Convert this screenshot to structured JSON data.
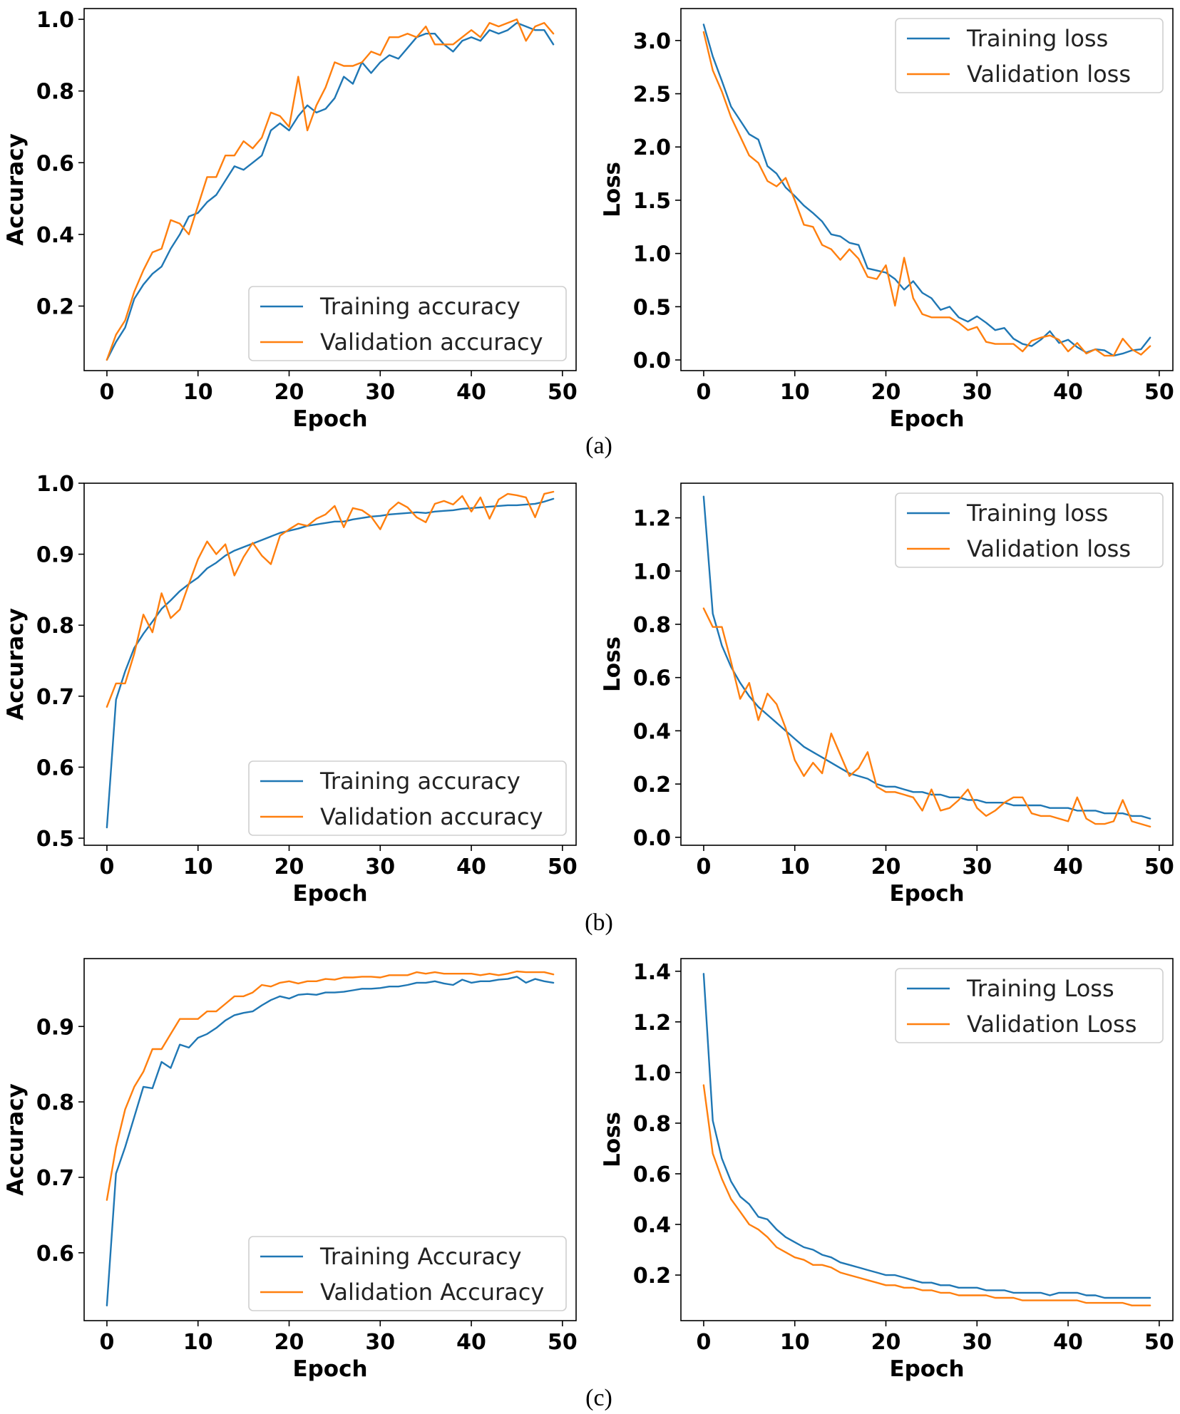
{
  "captions": [
    "(a)",
    "(b)",
    "(c)"
  ],
  "colors": {
    "training": "#1f77b4",
    "validation": "#ff7f0e"
  },
  "chart_data": [
    {
      "id": "a-accuracy",
      "type": "line",
      "panel": "(a)",
      "title": "",
      "xlabel": "Epoch",
      "ylabel": "Accuracy",
      "xlim": [
        -2.5,
        51.5
      ],
      "ylim": [
        0.02,
        1.03
      ],
      "xticks": [
        0,
        10,
        20,
        30,
        40,
        50
      ],
      "yticks": [
        0.2,
        0.4,
        0.6,
        0.8,
        1.0
      ],
      "ytick_labels": [
        "0.2",
        "0.4",
        "0.6",
        "0.8",
        "1.0"
      ],
      "grid": false,
      "legend": "lower-right",
      "series": [
        {
          "name": "Training accuracy",
          "color": "#1f77b4",
          "values": [
            0.05,
            0.1,
            0.14,
            0.22,
            0.26,
            0.29,
            0.31,
            0.36,
            0.4,
            0.45,
            0.46,
            0.49,
            0.51,
            0.55,
            0.59,
            0.58,
            0.6,
            0.62,
            0.69,
            0.71,
            0.69,
            0.73,
            0.76,
            0.74,
            0.75,
            0.78,
            0.84,
            0.82,
            0.88,
            0.85,
            0.88,
            0.9,
            0.89,
            0.92,
            0.95,
            0.96,
            0.96,
            0.93,
            0.91,
            0.94,
            0.95,
            0.94,
            0.97,
            0.96,
            0.97,
            0.99,
            0.98,
            0.97,
            0.97,
            0.93
          ]
        },
        {
          "name": "Validation accuracy",
          "color": "#ff7f0e",
          "values": [
            0.05,
            0.12,
            0.16,
            0.24,
            0.3,
            0.35,
            0.36,
            0.44,
            0.43,
            0.4,
            0.48,
            0.56,
            0.56,
            0.62,
            0.62,
            0.66,
            0.64,
            0.67,
            0.74,
            0.73,
            0.7,
            0.84,
            0.69,
            0.76,
            0.81,
            0.88,
            0.87,
            0.87,
            0.88,
            0.91,
            0.9,
            0.95,
            0.95,
            0.96,
            0.95,
            0.98,
            0.93,
            0.93,
            0.93,
            0.95,
            0.97,
            0.95,
            0.99,
            0.98,
            0.99,
            1.0,
            0.94,
            0.98,
            0.99,
            0.96
          ]
        }
      ]
    },
    {
      "id": "a-loss",
      "type": "line",
      "panel": "(a)",
      "title": "",
      "xlabel": "Epoch",
      "ylabel": "Loss",
      "xlim": [
        -2.5,
        51.5
      ],
      "ylim": [
        -0.1,
        3.3
      ],
      "xticks": [
        0,
        10,
        20,
        30,
        40,
        50
      ],
      "yticks": [
        0.0,
        0.5,
        1.0,
        1.5,
        2.0,
        2.5,
        3.0
      ],
      "ytick_labels": [
        "0.0",
        "0.5",
        "1.0",
        "1.5",
        "2.0",
        "2.5",
        "3.0"
      ],
      "grid": false,
      "legend": "upper-right",
      "series": [
        {
          "name": "Training loss",
          "color": "#1f77b4",
          "values": [
            3.15,
            2.85,
            2.62,
            2.38,
            2.25,
            2.12,
            2.07,
            1.82,
            1.75,
            1.62,
            1.54,
            1.45,
            1.38,
            1.3,
            1.18,
            1.16,
            1.1,
            1.08,
            0.86,
            0.84,
            0.82,
            0.76,
            0.66,
            0.74,
            0.63,
            0.58,
            0.47,
            0.5,
            0.4,
            0.36,
            0.41,
            0.35,
            0.28,
            0.3,
            0.2,
            0.15,
            0.13,
            0.19,
            0.27,
            0.16,
            0.19,
            0.12,
            0.07,
            0.1,
            0.09,
            0.04,
            0.06,
            0.09,
            0.1,
            0.21
          ]
        },
        {
          "name": "Validation loss",
          "color": "#ff7f0e",
          "values": [
            3.08,
            2.72,
            2.52,
            2.28,
            2.1,
            1.92,
            1.85,
            1.68,
            1.63,
            1.71,
            1.5,
            1.27,
            1.25,
            1.08,
            1.04,
            0.94,
            1.04,
            0.95,
            0.78,
            0.76,
            0.89,
            0.51,
            0.96,
            0.58,
            0.43,
            0.4,
            0.4,
            0.4,
            0.35,
            0.28,
            0.31,
            0.17,
            0.15,
            0.15,
            0.15,
            0.08,
            0.18,
            0.21,
            0.23,
            0.19,
            0.08,
            0.16,
            0.06,
            0.1,
            0.04,
            0.04,
            0.2,
            0.1,
            0.05,
            0.13
          ]
        }
      ]
    },
    {
      "id": "b-accuracy",
      "type": "line",
      "panel": "(b)",
      "title": "",
      "xlabel": "Epoch",
      "ylabel": "Accuracy",
      "xlim": [
        -2.5,
        51.5
      ],
      "ylim": [
        0.49,
        1.0
      ],
      "xticks": [
        0,
        10,
        20,
        30,
        40,
        50
      ],
      "yticks": [
        0.5,
        0.6,
        0.7,
        0.8,
        0.9,
        1.0
      ],
      "ytick_labels": [
        "0.5",
        "0.6",
        "0.7",
        "0.8",
        "0.9",
        "1.0"
      ],
      "grid": false,
      "legend": "lower-right",
      "series": [
        {
          "name": "Training accuracy",
          "color": "#1f77b4",
          "values": [
            0.515,
            0.695,
            0.735,
            0.768,
            0.788,
            0.805,
            0.823,
            0.835,
            0.848,
            0.858,
            0.867,
            0.88,
            0.888,
            0.898,
            0.905,
            0.91,
            0.915,
            0.92,
            0.925,
            0.93,
            0.933,
            0.936,
            0.94,
            0.942,
            0.944,
            0.946,
            0.946,
            0.949,
            0.951,
            0.953,
            0.954,
            0.956,
            0.957,
            0.958,
            0.959,
            0.958,
            0.96,
            0.961,
            0.962,
            0.964,
            0.965,
            0.966,
            0.967,
            0.968,
            0.969,
            0.969,
            0.97,
            0.971,
            0.974,
            0.978
          ]
        },
        {
          "name": "Validation accuracy",
          "color": "#ff7f0e",
          "values": [
            0.685,
            0.718,
            0.718,
            0.76,
            0.815,
            0.79,
            0.845,
            0.81,
            0.822,
            0.858,
            0.893,
            0.918,
            0.9,
            0.914,
            0.87,
            0.896,
            0.916,
            0.898,
            0.886,
            0.926,
            0.935,
            0.943,
            0.94,
            0.95,
            0.956,
            0.968,
            0.938,
            0.965,
            0.962,
            0.953,
            0.935,
            0.962,
            0.973,
            0.966,
            0.952,
            0.945,
            0.971,
            0.975,
            0.97,
            0.982,
            0.96,
            0.98,
            0.95,
            0.977,
            0.985,
            0.983,
            0.98,
            0.952,
            0.985,
            0.988
          ]
        }
      ]
    },
    {
      "id": "b-loss",
      "type": "line",
      "panel": "(b)",
      "title": "",
      "xlabel": "Epoch",
      "ylabel": "Loss",
      "xlim": [
        -2.5,
        51.5
      ],
      "ylim": [
        -0.03,
        1.33
      ],
      "xticks": [
        0,
        10,
        20,
        30,
        40,
        50
      ],
      "yticks": [
        0.0,
        0.2,
        0.4,
        0.6,
        0.8,
        1.0,
        1.2
      ],
      "ytick_labels": [
        "0.0",
        "0.2",
        "0.4",
        "0.6",
        "0.8",
        "1.0",
        "1.2"
      ],
      "grid": false,
      "legend": "upper-right",
      "series": [
        {
          "name": "Training loss",
          "color": "#1f77b4",
          "values": [
            1.28,
            0.84,
            0.72,
            0.64,
            0.58,
            0.53,
            0.49,
            0.46,
            0.43,
            0.4,
            0.37,
            0.34,
            0.32,
            0.3,
            0.28,
            0.26,
            0.24,
            0.23,
            0.22,
            0.2,
            0.19,
            0.19,
            0.18,
            0.17,
            0.17,
            0.16,
            0.16,
            0.15,
            0.15,
            0.14,
            0.14,
            0.13,
            0.13,
            0.13,
            0.12,
            0.12,
            0.12,
            0.12,
            0.11,
            0.11,
            0.11,
            0.1,
            0.1,
            0.1,
            0.09,
            0.09,
            0.09,
            0.08,
            0.08,
            0.07
          ]
        },
        {
          "name": "Validation loss",
          "color": "#ff7f0e",
          "values": [
            0.86,
            0.79,
            0.79,
            0.66,
            0.52,
            0.58,
            0.44,
            0.54,
            0.5,
            0.41,
            0.29,
            0.23,
            0.28,
            0.24,
            0.39,
            0.31,
            0.23,
            0.26,
            0.32,
            0.19,
            0.17,
            0.17,
            0.16,
            0.15,
            0.1,
            0.18,
            0.1,
            0.11,
            0.14,
            0.18,
            0.11,
            0.08,
            0.1,
            0.13,
            0.15,
            0.15,
            0.09,
            0.08,
            0.08,
            0.07,
            0.06,
            0.15,
            0.07,
            0.05,
            0.05,
            0.06,
            0.14,
            0.06,
            0.05,
            0.04
          ]
        }
      ]
    },
    {
      "id": "c-accuracy",
      "type": "line",
      "panel": "(c)",
      "title": "",
      "xlabel": "Epoch",
      "ylabel": "Accuracy",
      "xlim": [
        -2.5,
        51.5
      ],
      "ylim": [
        0.51,
        0.99
      ],
      "xticks": [
        0,
        10,
        20,
        30,
        40,
        50
      ],
      "yticks": [
        0.6,
        0.7,
        0.8,
        0.9
      ],
      "ytick_labels": [
        "0.6",
        "0.7",
        "0.8",
        "0.9"
      ],
      "grid": false,
      "legend": "lower-right",
      "series": [
        {
          "name": "Training Accuracy",
          "color": "#1f77b4",
          "values": [
            0.53,
            0.705,
            0.74,
            0.78,
            0.82,
            0.818,
            0.853,
            0.845,
            0.876,
            0.872,
            0.885,
            0.89,
            0.898,
            0.908,
            0.915,
            0.918,
            0.92,
            0.928,
            0.935,
            0.94,
            0.937,
            0.942,
            0.943,
            0.942,
            0.945,
            0.945,
            0.946,
            0.948,
            0.95,
            0.95,
            0.951,
            0.953,
            0.953,
            0.955,
            0.958,
            0.958,
            0.96,
            0.957,
            0.955,
            0.962,
            0.958,
            0.96,
            0.96,
            0.962,
            0.963,
            0.966,
            0.958,
            0.963,
            0.96,
            0.958
          ]
        },
        {
          "name": "Validation Accuracy",
          "color": "#ff7f0e",
          "values": [
            0.67,
            0.74,
            0.79,
            0.82,
            0.84,
            0.87,
            0.87,
            0.89,
            0.91,
            0.91,
            0.91,
            0.92,
            0.92,
            0.93,
            0.94,
            0.94,
            0.945,
            0.955,
            0.953,
            0.958,
            0.96,
            0.957,
            0.96,
            0.96,
            0.963,
            0.962,
            0.965,
            0.965,
            0.966,
            0.966,
            0.965,
            0.968,
            0.968,
            0.968,
            0.972,
            0.97,
            0.972,
            0.97,
            0.97,
            0.97,
            0.97,
            0.968,
            0.97,
            0.968,
            0.97,
            0.973,
            0.972,
            0.972,
            0.972,
            0.969
          ]
        }
      ]
    },
    {
      "id": "c-loss",
      "type": "line",
      "panel": "(c)",
      "title": "",
      "xlabel": "Epoch",
      "ylabel": "Loss",
      "xlim": [
        -2.5,
        51.5
      ],
      "ylim": [
        0.02,
        1.45
      ],
      "xticks": [
        0,
        10,
        20,
        30,
        40,
        50
      ],
      "yticks": [
        0.2,
        0.4,
        0.6,
        0.8,
        1.0,
        1.2,
        1.4
      ],
      "ytick_labels": [
        "0.2",
        "0.4",
        "0.6",
        "0.8",
        "1.0",
        "1.2",
        "1.4"
      ],
      "grid": false,
      "legend": "upper-right",
      "series": [
        {
          "name": "Training Loss",
          "color": "#1f77b4",
          "values": [
            1.39,
            0.81,
            0.66,
            0.57,
            0.51,
            0.48,
            0.43,
            0.42,
            0.38,
            0.35,
            0.33,
            0.31,
            0.3,
            0.28,
            0.27,
            0.25,
            0.24,
            0.23,
            0.22,
            0.21,
            0.2,
            0.2,
            0.19,
            0.18,
            0.17,
            0.17,
            0.16,
            0.16,
            0.15,
            0.15,
            0.15,
            0.14,
            0.14,
            0.14,
            0.13,
            0.13,
            0.13,
            0.13,
            0.12,
            0.13,
            0.13,
            0.13,
            0.12,
            0.12,
            0.11,
            0.11,
            0.11,
            0.11,
            0.11,
            0.11
          ]
        },
        {
          "name": "Validation Loss",
          "color": "#ff7f0e",
          "values": [
            0.95,
            0.68,
            0.58,
            0.5,
            0.45,
            0.4,
            0.38,
            0.35,
            0.31,
            0.29,
            0.27,
            0.26,
            0.24,
            0.24,
            0.23,
            0.21,
            0.2,
            0.19,
            0.18,
            0.17,
            0.16,
            0.16,
            0.15,
            0.15,
            0.14,
            0.14,
            0.13,
            0.13,
            0.12,
            0.12,
            0.12,
            0.12,
            0.11,
            0.11,
            0.11,
            0.1,
            0.1,
            0.1,
            0.1,
            0.1,
            0.1,
            0.1,
            0.09,
            0.09,
            0.09,
            0.09,
            0.09,
            0.08,
            0.08,
            0.08
          ]
        }
      ]
    }
  ]
}
